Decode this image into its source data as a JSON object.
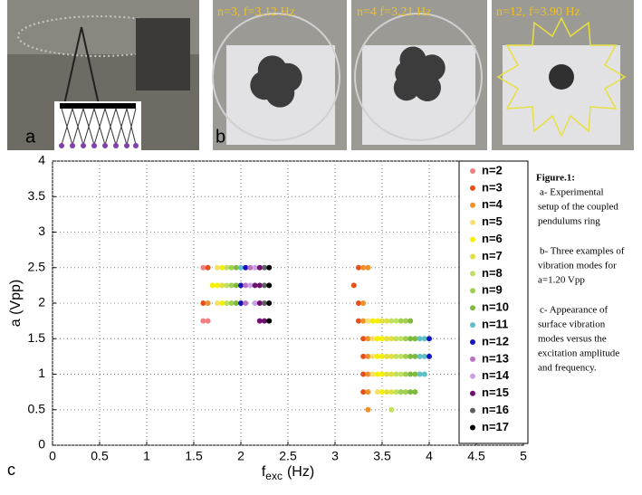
{
  "chart_data": {
    "type": "scatter",
    "xlabel": "f",
    "xlabel_sub": "exc",
    "xlabel_unit": "(Hz)",
    "ylabel": "a (Vpp)",
    "xlim": [
      0,
      5
    ],
    "ylim": [
      0,
      4
    ],
    "xticks": [
      0,
      0.5,
      1,
      1.5,
      2,
      2.5,
      3,
      3.5,
      4,
      4.5,
      5
    ],
    "yticks": [
      0,
      0.5,
      1,
      1.5,
      2,
      2.5,
      3,
      3.5,
      4
    ],
    "grid": true,
    "legend": "right",
    "series": [
      {
        "name": "n=2",
        "color": "#f08080",
        "x": [
          1.6,
          1.6,
          1.65
        ],
        "values": [
          2.5,
          1.75,
          1.75
        ]
      },
      {
        "name": "n=3",
        "color": "#e8501a",
        "x": [
          1.65,
          1.6,
          3.25,
          3.2,
          3.25,
          3.25,
          3.3,
          3.3,
          3.3,
          3.3
        ],
        "values": [
          2.5,
          2,
          2.5,
          2.25,
          2,
          1.75,
          1.5,
          1.25,
          1,
          0.75
        ]
      },
      {
        "name": "n=4",
        "color": "#f0902a",
        "x": [
          1.65,
          3.3,
          3.35,
          3.3,
          3.3,
          3.35,
          3.35,
          3.35,
          3.35,
          3.35
        ],
        "values": [
          2,
          2.5,
          2.5,
          2,
          1.75,
          1.5,
          1.25,
          1,
          0.75,
          0.5
        ]
      },
      {
        "name": "n=5",
        "color": "#f4e070",
        "x": [
          1.75,
          1.75,
          3.35,
          3.4,
          3.4,
          3.4,
          3.45
        ],
        "values": [
          2.5,
          2,
          1.75,
          1.5,
          1.25,
          1,
          0.75
        ]
      },
      {
        "name": "n=6",
        "color": "#f5f000",
        "x": [
          1.8,
          1.7,
          1.75,
          1.8,
          3.4,
          3.45,
          3.45,
          3.5,
          3.45,
          3.5,
          3.45,
          3.5,
          3.5
        ],
        "values": [
          2.5,
          2.25,
          2.25,
          2,
          1.75,
          1.75,
          1.5,
          1.5,
          1.25,
          1.25,
          1,
          1,
          0.75
        ]
      },
      {
        "name": "n=7",
        "color": "#e0e040",
        "x": [
          1.8,
          3.5,
          3.55,
          3.55,
          3.6,
          3.55,
          3.6,
          3.55,
          3.6,
          3.55,
          3.6
        ],
        "values": [
          2.25,
          1.75,
          1.75,
          1.5,
          1.5,
          1.25,
          1.25,
          1,
          1,
          0.75,
          0.75
        ]
      },
      {
        "name": "n=8",
        "color": "#c0e060",
        "x": [
          1.85,
          1.85,
          1.85,
          3.6,
          3.65,
          3.65,
          3.7,
          3.65,
          3.7,
          3.65,
          3.7,
          3.65,
          3.6
        ],
        "values": [
          2.5,
          2.25,
          2,
          1.75,
          1.75,
          1.5,
          1.5,
          1.25,
          1.25,
          1,
          1,
          0.75,
          0.5
        ]
      },
      {
        "name": "n=9",
        "color": "#a0d050",
        "x": [
          1.9,
          1.9,
          1.9,
          3.7,
          3.75,
          3.75,
          3.75,
          3.75,
          3.7,
          3.75
        ],
        "values": [
          2.5,
          2.25,
          2,
          1.75,
          1.75,
          1.5,
          1.25,
          1,
          0.75,
          0.75
        ]
      },
      {
        "name": "n=10",
        "color": "#80b840",
        "x": [
          1.95,
          1.95,
          1.95,
          3.8,
          3.8,
          3.85,
          3.8,
          3.85,
          3.8,
          3.85,
          3.8,
          3.85
        ],
        "values": [
          2.5,
          2.25,
          2,
          1.75,
          1.5,
          1.5,
          1.25,
          1.25,
          1,
          1,
          0.75,
          0.75
        ]
      },
      {
        "name": "n=11",
        "color": "#60c0c8",
        "x": [
          2.0,
          3.9,
          3.95,
          3.9,
          3.95,
          3.9,
          3.95
        ],
        "values": [
          2.5,
          1.5,
          1.5,
          1.25,
          1.25,
          1,
          1
        ]
      },
      {
        "name": "n=12",
        "color": "#1414c0",
        "x": [
          2.05,
          2.0,
          2.0,
          4.0,
          4.0
        ],
        "values": [
          2.5,
          2.25,
          2,
          1.5,
          1.25
        ]
      },
      {
        "name": "n=13",
        "color": "#c070c0",
        "x": [
          2.1,
          2.05,
          2.05
        ],
        "values": [
          2.5,
          2.25,
          2
        ]
      },
      {
        "name": "n=14",
        "color": "#c8a0e8",
        "x": [
          2.15,
          2.1,
          2.15
        ],
        "values": [
          2.5,
          2.25,
          2
        ]
      },
      {
        "name": "n=15",
        "color": "#701070",
        "x": [
          2.2,
          2.15,
          2.2,
          2.2,
          2.2,
          2.25
        ],
        "values": [
          2.5,
          2.25,
          2.25,
          2,
          1.75,
          1.75
        ]
      },
      {
        "name": "n=16",
        "color": "#606060",
        "x": [
          2.25,
          2.25,
          2.25
        ],
        "values": [
          2.5,
          2.25,
          2
        ]
      },
      {
        "name": "n=17",
        "color": "#000000",
        "x": [
          2.3,
          2.3,
          2.3,
          2.3
        ],
        "values": [
          2.5,
          2.25,
          2,
          1.75
        ]
      }
    ]
  },
  "figure": {
    "panel_labels": [
      "a",
      "b",
      "c"
    ],
    "photo_captions": [
      "n=3, f=3.12 Hz",
      "n=4 f=3.21 Hz",
      "n=12, f=3.90 Hz"
    ],
    "caption": {
      "title": "Figure.1:",
      "a": [
        "a- Experimental",
        "setup of  the coupled",
        "pendulums ring"
      ],
      "b": [
        "b- Three examples of",
        "vibration modes  for",
        "a=1.20 Vpp"
      ],
      "c": [
        "c- Appearance of",
        "surface vibration",
        "modes versus the",
        "excitation amplitude",
        "and frequency."
      ]
    }
  }
}
